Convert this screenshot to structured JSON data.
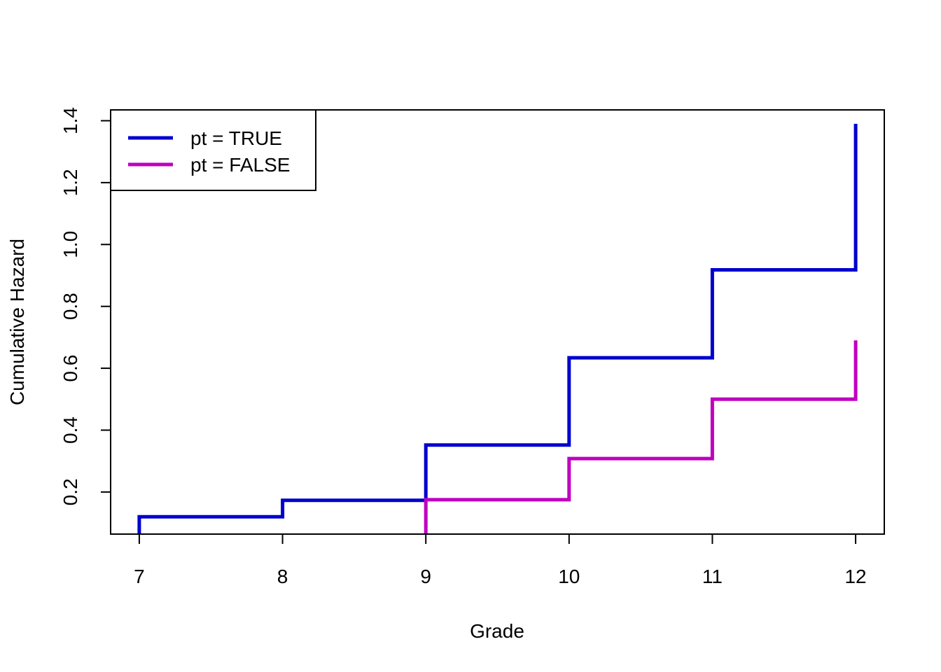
{
  "chart_data": {
    "type": "line",
    "line_style": "step",
    "title": "",
    "xlabel": "Grade",
    "ylabel": "Cumulative Hazard",
    "xlim": [
      6.8,
      12.2
    ],
    "ylim": [
      0.064,
      1.435
    ],
    "x_ticks": [
      7,
      8,
      9,
      10,
      11,
      12
    ],
    "x_tick_labels": [
      "7",
      "8",
      "9",
      "10",
      "11",
      "12"
    ],
    "y_ticks": [
      0.2,
      0.4,
      0.6,
      0.8,
      1.0,
      1.2,
      1.4
    ],
    "y_tick_labels": [
      "0.2",
      "0.4",
      "0.6",
      "0.8",
      "1.0",
      "1.2",
      "1.4"
    ],
    "grid": false,
    "legend": {
      "position": "top-left",
      "entries": [
        "pt = TRUE",
        "pt = FALSE"
      ]
    },
    "series": [
      {
        "name": "pt = TRUE",
        "color": "#0000CD",
        "x": [
          7,
          8,
          9,
          10,
          11,
          12
        ],
        "y": [
          0.12,
          0.173,
          0.352,
          0.634,
          0.918,
          1.39
        ]
      },
      {
        "name": "pt = FALSE",
        "color": "#BF00BF",
        "x": [
          9,
          10,
          11,
          12
        ],
        "y": [
          0.175,
          0.308,
          0.5,
          0.69
        ]
      }
    ]
  }
}
